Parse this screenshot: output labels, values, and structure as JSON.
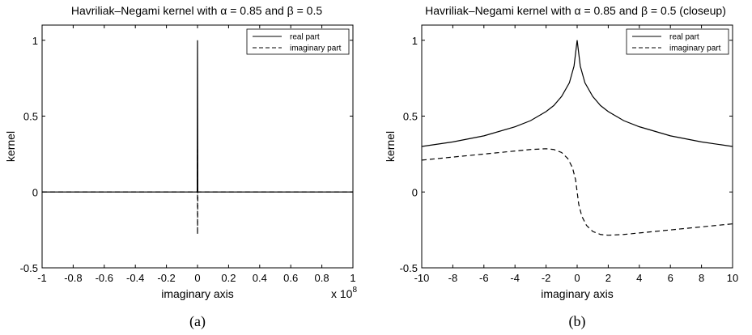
{
  "chart_data": [
    {
      "type": "line",
      "title": "Havriliak–Negami kernel with α = 0.85 and β = 0.5",
      "xlabel": "imaginary axis",
      "ylabel": "kernel",
      "caption": "(a)",
      "x_exponent_label": "x 10",
      "x_exponent_power": "8",
      "xlim": [
        -1,
        1
      ],
      "ylim": [
        -0.5,
        1.1
      ],
      "x_ticks": [
        "-1",
        "-0.8",
        "-0.6",
        "-0.4",
        "-0.2",
        "0",
        "0.2",
        "0.4",
        "0.6",
        "0.8",
        "1"
      ],
      "y_ticks": [
        "-0.5",
        "0",
        "0.5",
        "1"
      ],
      "legend": {
        "position": "top-right",
        "entries": [
          "real part",
          "imaginary part"
        ]
      },
      "series": [
        {
          "name": "real part",
          "style": "solid",
          "x": [
            -1,
            -0.002,
            0,
            0.002,
            1
          ],
          "y": [
            0,
            0,
            1,
            0,
            0
          ]
        },
        {
          "name": "imaginary part",
          "style": "dashed",
          "x": [
            -1,
            -0.002,
            0,
            0,
            0.002,
            1
          ],
          "y": [
            0,
            0,
            0.28,
            -0.28,
            0,
            0
          ]
        }
      ]
    },
    {
      "type": "line",
      "title": "Havriliak–Negami kernel with α = 0.85 and β = 0.5 (closeup)",
      "xlabel": "imaginary axis",
      "ylabel": "kernel",
      "caption": "(b)",
      "xlim": [
        -10,
        10
      ],
      "ylim": [
        -0.5,
        1.1
      ],
      "x_ticks": [
        "-10",
        "-8",
        "-6",
        "-4",
        "-2",
        "0",
        "2",
        "4",
        "6",
        "8",
        "10"
      ],
      "y_ticks": [
        "-0.5",
        "0",
        "0.5",
        "1"
      ],
      "legend": {
        "position": "top-right",
        "entries": [
          "real part",
          "imaginary part"
        ]
      },
      "series": [
        {
          "name": "real part",
          "style": "solid",
          "x": [
            -10,
            -8,
            -6,
            -4,
            -3,
            -2,
            -1.5,
            -1,
            -0.5,
            -0.2,
            0,
            0.2,
            0.5,
            1,
            1.5,
            2,
            3,
            4,
            6,
            8,
            10
          ],
          "y": [
            0.3,
            0.33,
            0.37,
            0.43,
            0.47,
            0.53,
            0.57,
            0.63,
            0.72,
            0.83,
            1.0,
            0.83,
            0.72,
            0.63,
            0.57,
            0.53,
            0.47,
            0.43,
            0.37,
            0.33,
            0.3
          ]
        },
        {
          "name": "imaginary part",
          "style": "dashed",
          "x": [
            -10,
            -8,
            -6,
            -4,
            -3,
            -2,
            -1.5,
            -1,
            -0.6,
            -0.3,
            -0.1,
            0,
            0.1,
            0.3,
            0.6,
            1,
            1.5,
            2,
            3,
            4,
            6,
            8,
            10
          ],
          "y": [
            0.21,
            0.23,
            0.25,
            0.27,
            0.28,
            0.285,
            0.28,
            0.26,
            0.22,
            0.16,
            0.08,
            0.0,
            -0.08,
            -0.16,
            -0.22,
            -0.26,
            -0.28,
            -0.285,
            -0.28,
            -0.27,
            -0.25,
            -0.23,
            -0.21
          ]
        }
      ]
    }
  ]
}
